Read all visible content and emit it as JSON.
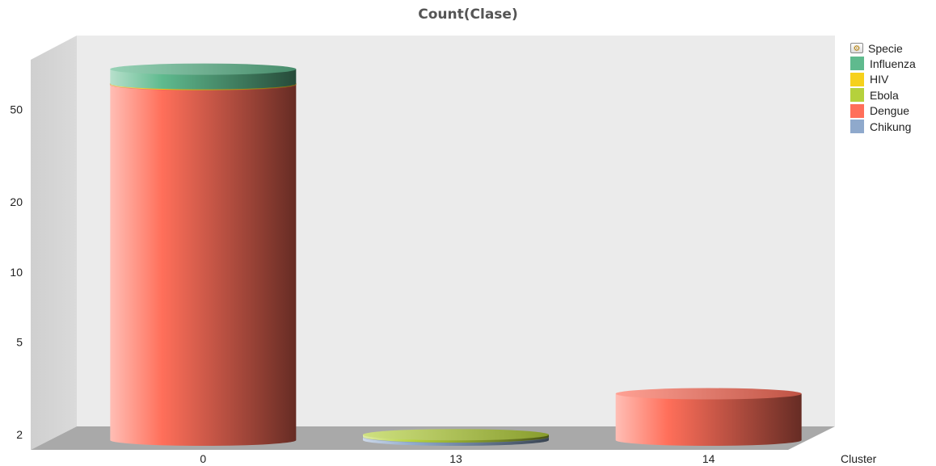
{
  "chart_data": {
    "type": "bar",
    "title": "Count(Clase)",
    "xlabel": "Cluster",
    "ylabel": "",
    "yscale": "log",
    "ylim": [
      1.85,
      90
    ],
    "yticks": [
      "2",
      "5",
      "10",
      "20",
      "50"
    ],
    "categories": [
      "0",
      "13",
      "14"
    ],
    "stacked": true,
    "series": [
      {
        "name": "Chikung",
        "color": "#8fa9cc",
        "values": [
          0,
          1,
          0
        ]
      },
      {
        "name": "Dengue",
        "color": "#ff6f5a",
        "values": [
          64,
          0,
          3
        ]
      },
      {
        "name": "Ebola",
        "color": "#b5d13c",
        "values": [
          0,
          1,
          0
        ]
      },
      {
        "name": "HIV",
        "color": "#f6d11b",
        "values": [
          0.5,
          0,
          0
        ]
      },
      {
        "name": "Influenza",
        "color": "#5fba8e",
        "values": [
          10,
          0,
          0
        ]
      }
    ],
    "legend": {
      "title": "Specie",
      "position": "right",
      "order": [
        "Influenza",
        "HIV",
        "Ebola",
        "Dengue",
        "Chikung"
      ]
    }
  }
}
